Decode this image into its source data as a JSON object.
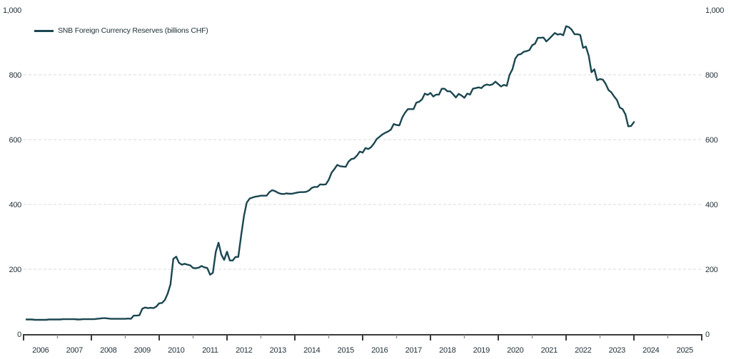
{
  "chart_data": {
    "type": "line",
    "title": "",
    "legend": {
      "label": "SNB Foreign Currency Reserves (billions CHF)",
      "position": "top-left"
    },
    "colors": {
      "line": "#1b4650",
      "grid": "#d9d9d9",
      "axis": "#3a3a3a",
      "text": "#24333a"
    },
    "grid": {
      "show": true,
      "style": "dashed",
      "levels": [
        200,
        400,
        600,
        800
      ]
    },
    "y_axis": {
      "min": 0,
      "max": 1000,
      "ticks": [
        0,
        200,
        400,
        600,
        800,
        1000
      ],
      "tick_labels": [
        "0",
        "200",
        "400",
        "600",
        "800",
        "1,000"
      ],
      "label_sides": "both"
    },
    "x_axis": {
      "start_year": 2006,
      "end_year": 2026,
      "tick_interval_years": 1,
      "major_ticks_on": "even-years",
      "year_labels": [
        "2006",
        "2007",
        "2008",
        "2009",
        "2010",
        "2011",
        "2012",
        "2013",
        "2014",
        "2015",
        "2016",
        "2017",
        "2018",
        "2019",
        "2020",
        "2021",
        "2022",
        "2023",
        "2024",
        "2025"
      ]
    },
    "series": [
      {
        "name": "SNB Foreign Currency Reserves (billions CHF)",
        "frequency": "monthly",
        "start": "2006-01",
        "end": "2023-12",
        "unit": "billions CHF",
        "values": [
          45,
          45,
          45,
          44,
          44,
          44,
          44,
          44,
          45,
          45,
          45,
          45,
          45,
          46,
          46,
          46,
          46,
          46,
          45,
          45,
          46,
          46,
          46,
          46,
          46,
          47,
          48,
          49,
          49,
          48,
          47,
          47,
          47,
          47,
          47,
          47,
          48,
          47,
          57,
          57,
          58,
          78,
          82,
          80,
          81,
          80,
          85,
          95,
          96,
          105,
          125,
          153,
          232,
          239,
          220,
          214,
          217,
          214,
          212,
          204,
          203,
          205,
          210,
          206,
          204,
          183,
          189,
          253,
          282,
          245,
          229,
          254,
          227,
          227,
          238,
          238,
          304,
          365,
          406,
          418,
          421,
          424,
          425,
          427,
          427,
          427,
          438,
          444,
          441,
          436,
          433,
          432,
          434,
          433,
          433,
          435,
          437,
          438,
          438,
          439,
          443,
          451,
          454,
          454,
          462,
          461,
          462,
          476,
          498,
          509,
          522,
          518,
          517,
          516,
          532,
          540,
          542,
          551,
          563,
          560,
          574,
          571,
          577,
          588,
          602,
          609,
          616,
          621,
          625,
          631,
          648,
          645,
          644,
          668,
          683,
          694,
          694,
          694,
          714,
          717,
          724,
          742,
          738,
          744,
          733,
          739,
          739,
          757,
          757,
          749,
          749,
          740,
          730,
          741,
          736,
          729,
          742,
          739,
          757,
          759,
          761,
          759,
          767,
          770,
          768,
          771,
          779,
          771,
          764,
          769,
          766,
          800,
          817,
          850,
          862,
          864,
          871,
          873,
          876,
          891,
          896,
          914,
          914,
          915,
          903,
          911,
          920,
          929,
          924,
          926,
          922,
          950,
          947,
          939,
          925,
          925,
          923,
          883,
          887,
          859,
          808,
          817,
          783,
          787,
          785,
          772,
          753,
          746,
          733,
          722,
          699,
          694,
          678,
          641,
          642,
          654
        ]
      }
    ]
  }
}
